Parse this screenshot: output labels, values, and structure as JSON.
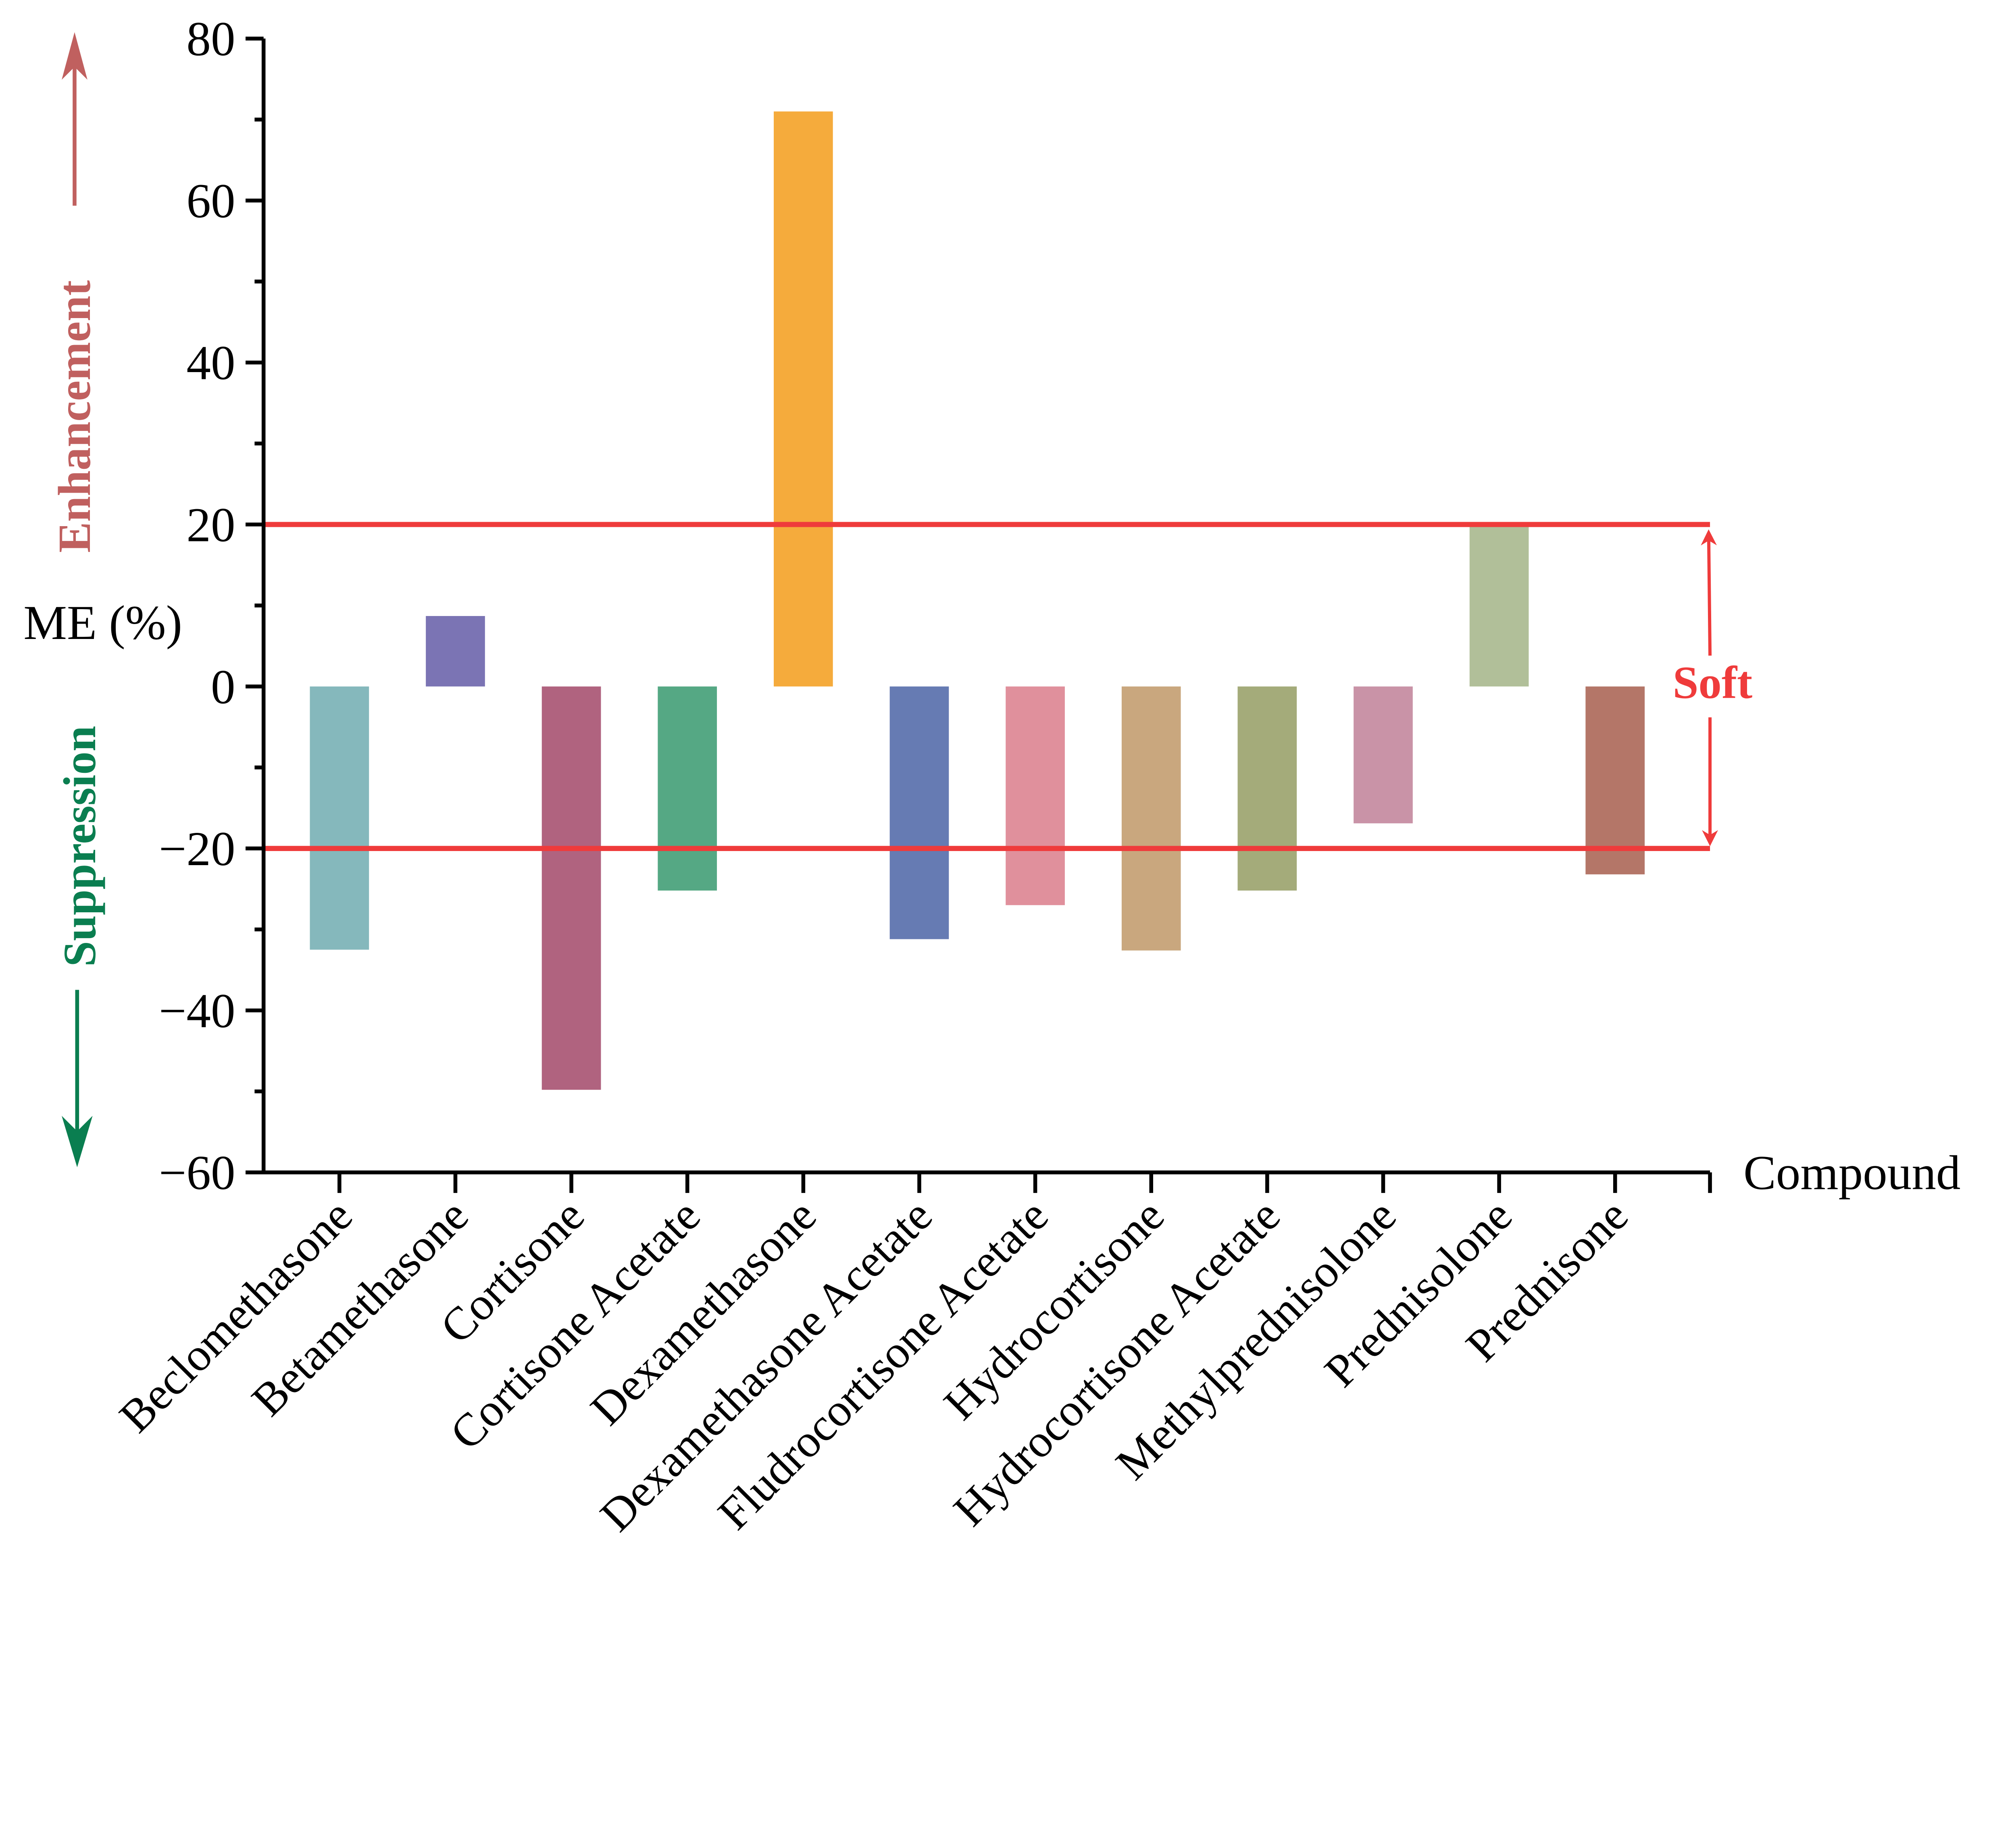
{
  "chart_data": {
    "type": "bar",
    "xlabel": "Compound",
    "ylabel": "ME (%)",
    "ylim": [
      -60,
      80
    ],
    "yticks": [
      -60,
      -40,
      -20,
      0,
      20,
      40,
      60,
      80
    ],
    "ytick_labels": [
      "−60",
      "−40",
      "−20",
      "0",
      "20",
      "40",
      "60",
      "80"
    ],
    "grid": false,
    "categories": [
      "Beclomethasone",
      "Betamethasone",
      "Cortisone",
      "Cortisone Acetate",
      "Dexamethasone",
      "Dexamethasone Acetate",
      "Fludrocortisone Acetate",
      "Hydrocortisone",
      "Hydrocortisone Acetate",
      "Methylprednisolone",
      "Prednisolone",
      "Prednisone"
    ],
    "values": [
      -32.5,
      8.7,
      -49.8,
      -25.2,
      71.0,
      -31.2,
      -27.0,
      -32.6,
      -25.2,
      -16.9,
      19.8,
      -23.2
    ],
    "colors": [
      "#85b8bc",
      "#7b74b4",
      "#b0637f",
      "#55a884",
      "#f5ab3c",
      "#667bb3",
      "#e0909c",
      "#c9a77e",
      "#a4ab7a",
      "#c993a7",
      "#b1bf99",
      "#b47668"
    ],
    "reference_lines": [
      20,
      -20
    ],
    "reference_color": "#ef3b3b",
    "annotations": {
      "enhancement": "Enhancement",
      "suppression": "Suppression",
      "soft": "Soft",
      "enhancement_color": "#c0605f",
      "suppression_color": "#0a7e50"
    }
  }
}
